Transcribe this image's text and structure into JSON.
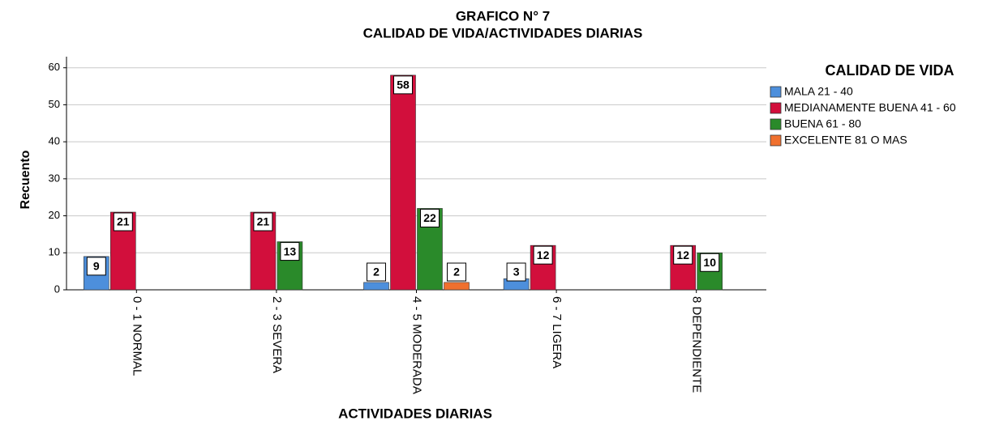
{
  "chart_data": {
    "type": "bar",
    "title": "GRAFICO N° 7",
    "subtitle": "CALIDAD DE VIDA/ACTIVIDADES DIARIAS",
    "x_label": "ACTIVIDADES DIARIAS",
    "y_label": "Recuento",
    "legend_title": "CALIDAD DE VIDA",
    "categories": [
      "0 - 1 NORMAL",
      "2 - 3 SEVERA",
      "4 - 5 MODERADA",
      "6 - 7 LIGERA",
      "8 DEPENDIENTE"
    ],
    "series": [
      {
        "name": "MALA 21 - 40",
        "color": "#4d8fdc",
        "values": [
          9,
          null,
          2,
          3,
          null
        ]
      },
      {
        "name": "MEDIANAMENTE BUENA 41 - 60",
        "color": "#d20f3c",
        "values": [
          21,
          21,
          58,
          12,
          12
        ]
      },
      {
        "name": "BUENA 61 - 80",
        "color": "#2a8a2a",
        "values": [
          null,
          13,
          22,
          null,
          10
        ]
      },
      {
        "name": "EXCELENTE 81 O MAS",
        "color": "#f0702e",
        "values": [
          null,
          null,
          2,
          null,
          null
        ]
      }
    ],
    "ylim": [
      0,
      63
    ],
    "yticks": [
      0,
      10,
      20,
      30,
      40,
      50,
      60
    ],
    "grid": true,
    "legend": "right"
  }
}
